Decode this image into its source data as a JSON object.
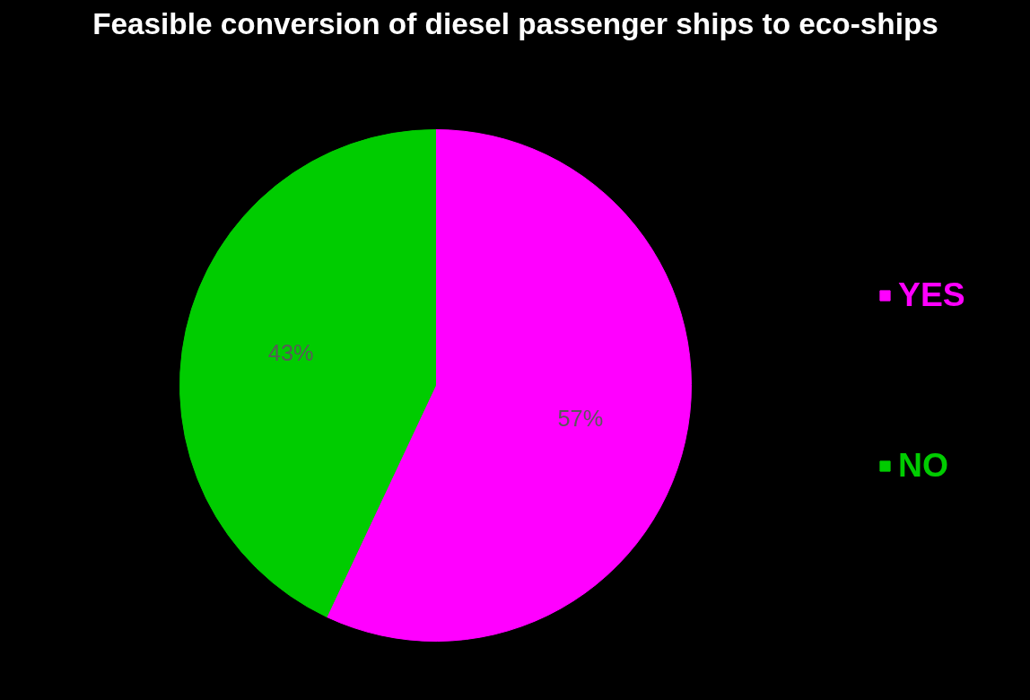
{
  "chart_data": {
    "type": "pie",
    "title": "Feasible conversion of diesel passenger ships to eco-ships",
    "categories": [
      "YES",
      "NO"
    ],
    "values": [
      57,
      43
    ],
    "colors": [
      "#ff00ff",
      "#00cc00"
    ],
    "value_labels": [
      "57%",
      "43%"
    ],
    "legend": "right"
  }
}
